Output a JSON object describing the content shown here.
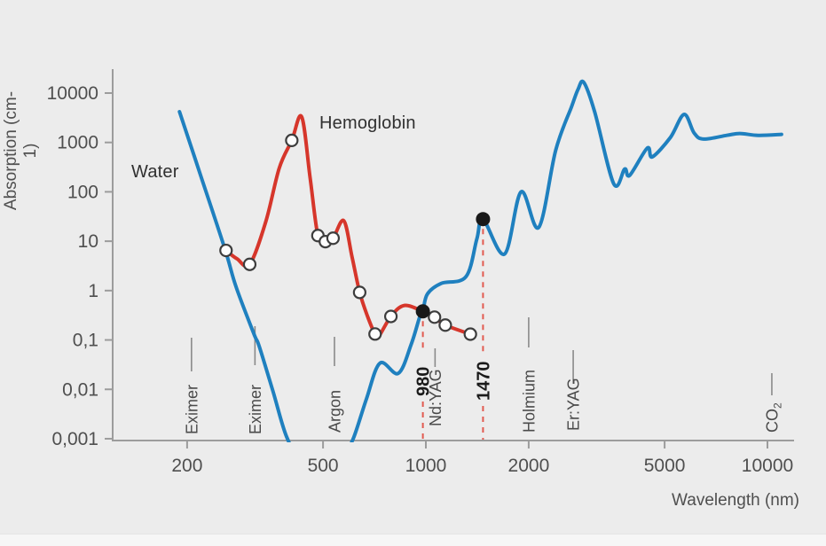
{
  "chart_data": {
    "type": "line",
    "title": "",
    "xlabel": "Wavelength (nm)",
    "ylabel": "Absorption (cm-1)",
    "x_scale": "log",
    "y_scale": "log",
    "xlim": [
      170,
      12000
    ],
    "ylim": [
      0.001,
      10000
    ],
    "grid": false,
    "x_ticks": [
      200,
      500,
      1000,
      2000,
      5000,
      10000
    ],
    "x_tick_labels": [
      "200",
      "500",
      "1000",
      "2000",
      "5000",
      "10000"
    ],
    "y_ticks": [
      10000,
      1000,
      100,
      10,
      1,
      0.1,
      0.01,
      0.001
    ],
    "y_tick_labels": [
      "10000",
      "1000",
      "100",
      "10",
      "1",
      "0,1",
      "0,01",
      "0,001"
    ],
    "series": [
      {
        "name": "Water",
        "color": "#1f80bf",
        "points": [
          [
            190,
            4200
          ],
          [
            222,
            164
          ],
          [
            259,
            6.4
          ],
          [
            278,
            1.2
          ],
          [
            314,
            0.131
          ],
          [
            325,
            0.075
          ],
          [
            357,
            0.009
          ],
          [
            391,
            0.0011
          ],
          [
            430,
            0.0004
          ],
          [
            520,
            0.00028
          ],
          [
            585,
            0.0006
          ],
          [
            616,
            0.0011
          ],
          [
            670,
            0.0064
          ],
          [
            734,
            0.034
          ],
          [
            830,
            0.021
          ],
          [
            905,
            0.08
          ],
          [
            960,
            0.3
          ],
          [
            980,
            0.38
          ],
          [
            1010,
            0.85
          ],
          [
            1110,
            1.4
          ],
          [
            1310,
            1.9
          ],
          [
            1410,
            11
          ],
          [
            1470,
            28
          ],
          [
            1700,
            5.5
          ],
          [
            1900,
            100
          ],
          [
            2140,
            19
          ],
          [
            2400,
            700
          ],
          [
            2670,
            5300
          ],
          [
            2790,
            12000
          ],
          [
            2900,
            16500
          ],
          [
            3120,
            4200
          ],
          [
            3550,
            145
          ],
          [
            3820,
            290
          ],
          [
            3950,
            215
          ],
          [
            4450,
            770
          ],
          [
            4600,
            510
          ],
          [
            5200,
            1265
          ],
          [
            5700,
            3700
          ],
          [
            6100,
            1550
          ],
          [
            6500,
            1170
          ],
          [
            7600,
            1390
          ],
          [
            8300,
            1520
          ],
          [
            9400,
            1390
          ],
          [
            11000,
            1460
          ]
        ],
        "highlight_dots": [
          [
            980,
            0.38
          ],
          [
            1470,
            28
          ]
        ]
      },
      {
        "name": "Hemoglobin",
        "color": "#d6362b",
        "points": [
          [
            260,
            6.5
          ],
          [
            280,
            4.4
          ],
          [
            305,
            3.4
          ],
          [
            340,
            25
          ],
          [
            372,
            300
          ],
          [
            405,
            1100
          ],
          [
            433,
            3300
          ],
          [
            458,
            200
          ],
          [
            483,
            13
          ],
          [
            508,
            9.8
          ],
          [
            535,
            11.5
          ],
          [
            575,
            26
          ],
          [
            608,
            4.8
          ],
          [
            640,
            0.92
          ],
          [
            675,
            0.3
          ],
          [
            710,
            0.132
          ],
          [
            728,
            0.118
          ],
          [
            790,
            0.3
          ],
          [
            865,
            0.5
          ],
          [
            980,
            0.38
          ],
          [
            1060,
            0.29
          ],
          [
            1140,
            0.2
          ],
          [
            1350,
            0.131
          ]
        ],
        "open_markers": [
          [
            260,
            6.5
          ],
          [
            305,
            3.4
          ],
          [
            405,
            1100
          ],
          [
            483,
            13
          ],
          [
            508,
            9.8
          ],
          [
            535,
            11.5
          ],
          [
            640,
            0.92
          ],
          [
            710,
            0.132
          ],
          [
            790,
            0.3
          ],
          [
            1060,
            0.29
          ],
          [
            1140,
            0.2
          ],
          [
            1350,
            0.131
          ]
        ]
      }
    ],
    "laser_markers": [
      {
        "label": "Eximer",
        "nm": 206,
        "bold": false,
        "dashed": false
      },
      {
        "label": "Eximer",
        "nm": 316,
        "bold": false,
        "dashed": false
      },
      {
        "label": "Argon",
        "nm": 540,
        "bold": false,
        "dashed": false
      },
      {
        "label": "980",
        "nm": 980,
        "bold": true,
        "dashed": true,
        "dot_value": 0.38
      },
      {
        "label": "Nd:YAG",
        "nm": 1064,
        "bold": false,
        "dashed": false
      },
      {
        "label": "1470",
        "nm": 1470,
        "bold": true,
        "dashed": true,
        "dot_value": 28
      },
      {
        "label": "Holmium",
        "nm": 2000,
        "bold": false,
        "dashed": false
      },
      {
        "label": "Er:YAG",
        "nm": 2700,
        "bold": false,
        "dashed": false
      },
      {
        "label": "CO2",
        "nm": 10300,
        "bold": false,
        "dashed": false,
        "subscript": true
      }
    ],
    "legend_position": "inline-labels"
  },
  "colors": {
    "background": "#ececec",
    "water": "#1f80bf",
    "hemoglobin": "#d6362b",
    "dashed_line": "#e15a50",
    "black_dot": "#191919",
    "open_marker_stroke": "#3d3d3d",
    "open_marker_fill": "#fdfdfd",
    "axis": "#9c9c9c",
    "marker_line": "#8a8a8a",
    "tick_text": "#4f4f4f",
    "laser_text": "#4a4a4a",
    "bold_text": "#1a1a1a"
  }
}
